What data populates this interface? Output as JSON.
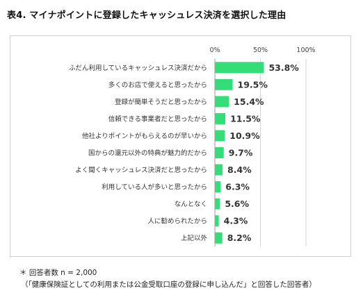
{
  "title": "表4. マイナポイントに登録したキャッシュレス決済を選択した理由",
  "chart_data": {
    "type": "bar",
    "orientation": "horizontal",
    "title": "",
    "xlim": [
      0,
      100
    ],
    "x_ticks": [
      "0%",
      "50%",
      "100%"
    ],
    "grid": true,
    "bar_color": "#33dd77",
    "categories": [
      "ふだん利用しているキャッシュレス決済だから",
      "多くのお店で使えると思ったから",
      "登録が簡単そうだと思ったから",
      "信頼できる事業者だと思ったから",
      "他社よりポイントがもらえるのが早いから",
      "国からの還元以外の特典が魅力的だから",
      "よく聞くキャッシュレス決済だと思ったから",
      "利用している人が多いと思ったから",
      "なんとなく",
      "人に勧められたから",
      "上記以外"
    ],
    "values": [
      53.8,
      19.5,
      15.4,
      11.5,
      10.9,
      9.7,
      8.4,
      6.3,
      5.6,
      4.3,
      8.2
    ],
    "value_labels": [
      "53.8%",
      "19.5%",
      "15.4%",
      "11.5%",
      "10.9%",
      "9.7%",
      "8.4%",
      "6.3%",
      "5.6%",
      "4.3%",
      "8.2%"
    ]
  },
  "notes": {
    "respondents": "＊ 回答者数 n = 2,000",
    "condition": "（「健康保険証としての利用または公金受取口座の登録に申し込んだ」と回答した回答者）"
  }
}
